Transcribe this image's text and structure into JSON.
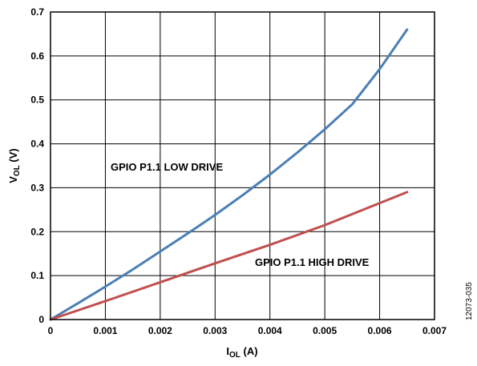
{
  "chart_data": {
    "type": "line",
    "xlabel": {
      "main": "I",
      "sub": "OL",
      "unit": " (A)"
    },
    "ylabel": {
      "main": "V",
      "sub": "OL",
      "unit": " (V)"
    },
    "xlim": [
      0,
      0.007
    ],
    "ylim": [
      0,
      0.7
    ],
    "grid": true,
    "x_ticks": [
      "0",
      "0.001",
      "0.002",
      "0.003",
      "0.004",
      "0.005",
      "0.006",
      "0.007"
    ],
    "y_ticks": [
      "0",
      "0.1",
      "0.2",
      "0.3",
      "0.4",
      "0.5",
      "0.6",
      "0.7"
    ],
    "series": [
      {
        "name": "GPIO P1.1 LOW DRIVE",
        "color": "#4a7fb5",
        "x": [
          0,
          0.0005,
          0.001,
          0.0015,
          0.002,
          0.0025,
          0.003,
          0.0035,
          0.004,
          0.0045,
          0.005,
          0.0055,
          0.006,
          0.0065
        ],
        "y": [
          0,
          0.037,
          0.075,
          0.114,
          0.155,
          0.196,
          0.238,
          0.283,
          0.33,
          0.38,
          0.433,
          0.49,
          0.57,
          0.66
        ]
      },
      {
        "name": "GPIO P1.1 HIGH DRIVE",
        "color": "#c0504d",
        "x": [
          0,
          0.001,
          0.002,
          0.003,
          0.004,
          0.005,
          0.006,
          0.0065
        ],
        "y": [
          0,
          0.042,
          0.085,
          0.128,
          0.17,
          0.215,
          0.265,
          0.29
        ]
      }
    ],
    "annotations": [
      "GPIO P1.1 LOW DRIVE",
      "GPIO P1.1 HIGH DRIVE"
    ]
  },
  "figure_id": "12073-035"
}
